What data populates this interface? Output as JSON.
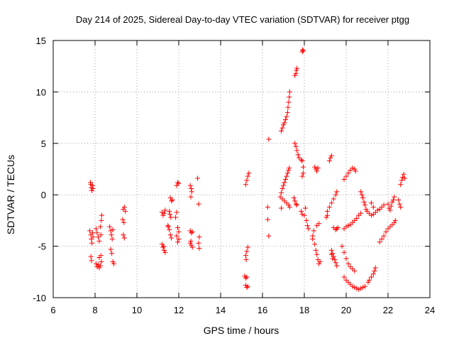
{
  "chart_data": {
    "type": "scatter",
    "title": "Day 214 of 2025, Sidereal Day-to-day VTEC variation (SDTVAR) for receiver ptgg",
    "xlabel": "GPS time / hours",
    "ylabel": "SDTVAR / TECUs",
    "xlim": [
      6,
      24
    ],
    "ylim": [
      -10,
      15
    ],
    "xticks": [
      6,
      8,
      10,
      12,
      14,
      16,
      18,
      20,
      22,
      24
    ],
    "yticks": [
      -10,
      -5,
      0,
      5,
      10,
      15
    ],
    "grid": true,
    "marker": "+",
    "marker_color": "#ff0000",
    "series": [
      {
        "name": "SDTVAR",
        "points": [
          [
            7.8,
            1.0
          ],
          [
            7.82,
            0.7
          ],
          [
            7.85,
            0.4
          ],
          [
            7.88,
            0.9
          ],
          [
            7.9,
            0.6
          ],
          [
            7.78,
            1.2
          ],
          [
            7.75,
            -3.5
          ],
          [
            7.8,
            -3.9
          ],
          [
            7.82,
            -4.3
          ],
          [
            7.85,
            -4.7
          ],
          [
            7.88,
            -3.7
          ],
          [
            7.9,
            -4.1
          ],
          [
            7.8,
            -6.0
          ],
          [
            7.83,
            -6.4
          ],
          [
            8.05,
            -3.3
          ],
          [
            8.1,
            -3.7
          ],
          [
            8.15,
            -4.1
          ],
          [
            8.2,
            -4.5
          ],
          [
            8.25,
            -3.1
          ],
          [
            8.3,
            -2.5
          ],
          [
            8.32,
            -2.0
          ],
          [
            8.28,
            -3.9
          ],
          [
            8.05,
            -6.7
          ],
          [
            8.1,
            -7.0
          ],
          [
            8.15,
            -6.8
          ],
          [
            8.2,
            -7.1
          ],
          [
            8.25,
            -6.9
          ],
          [
            8.3,
            -6.5
          ],
          [
            8.2,
            -6.1
          ],
          [
            8.28,
            -5.9
          ],
          [
            8.7,
            -3.1
          ],
          [
            8.75,
            -3.5
          ],
          [
            8.78,
            -3.9
          ],
          [
            8.82,
            -4.3
          ],
          [
            8.75,
            -5.3
          ],
          [
            8.8,
            -5.7
          ],
          [
            8.85,
            -6.5
          ],
          [
            8.9,
            -6.7
          ],
          [
            8.85,
            -3.4
          ],
          [
            9.35,
            -1.4
          ],
          [
            9.4,
            -1.2
          ],
          [
            9.45,
            -1.6
          ],
          [
            9.32,
            -2.4
          ],
          [
            9.38,
            -2.7
          ],
          [
            9.35,
            -3.9
          ],
          [
            9.4,
            -4.2
          ],
          [
            11.2,
            -1.7
          ],
          [
            11.25,
            -2.0
          ],
          [
            11.3,
            -1.8
          ],
          [
            11.35,
            -1.5
          ],
          [
            11.2,
            -4.8
          ],
          [
            11.25,
            -5.1
          ],
          [
            11.3,
            -5.4
          ],
          [
            11.35,
            -5.6
          ],
          [
            11.28,
            -5.0
          ],
          [
            11.6,
            -0.3
          ],
          [
            11.65,
            -0.6
          ],
          [
            11.7,
            -0.5
          ],
          [
            11.55,
            -1.6
          ],
          [
            11.58,
            -1.9
          ],
          [
            11.62,
            -2.2
          ],
          [
            11.5,
            -3.1
          ],
          [
            11.55,
            -3.4
          ],
          [
            11.6,
            -3.9
          ],
          [
            11.65,
            -4.2
          ],
          [
            11.48,
            -3.0
          ],
          [
            11.9,
            0.9
          ],
          [
            11.95,
            1.2
          ],
          [
            12.0,
            1.1
          ],
          [
            11.85,
            -2.2
          ],
          [
            11.9,
            -1.7
          ],
          [
            11.95,
            -3.2
          ],
          [
            12.0,
            -3.6
          ],
          [
            11.9,
            -4.0
          ],
          [
            11.95,
            -4.6
          ],
          [
            12.0,
            -4.3
          ],
          [
            12.55,
            0.9
          ],
          [
            12.6,
            0.6
          ],
          [
            12.62,
            0.3
          ],
          [
            12.58,
            -0.2
          ],
          [
            12.55,
            -3.5
          ],
          [
            12.6,
            -3.7
          ],
          [
            12.65,
            -3.6
          ],
          [
            12.55,
            -4.7
          ],
          [
            12.6,
            -4.9
          ],
          [
            12.65,
            -5.1
          ],
          [
            12.58,
            -4.5
          ],
          [
            12.9,
            1.6
          ],
          [
            12.95,
            -0.9
          ],
          [
            12.98,
            -4.1
          ],
          [
            12.95,
            -4.7
          ],
          [
            12.98,
            -5.2
          ],
          [
            15.2,
            1.0
          ],
          [
            15.25,
            1.4
          ],
          [
            15.3,
            1.8
          ],
          [
            15.35,
            2.1
          ],
          [
            15.2,
            -5.9
          ],
          [
            15.25,
            -5.5
          ],
          [
            15.3,
            -5.1
          ],
          [
            15.22,
            -6.3
          ],
          [
            15.15,
            -7.9
          ],
          [
            15.2,
            -8.1
          ],
          [
            15.25,
            -8.0
          ],
          [
            15.2,
            -8.8
          ],
          [
            15.25,
            -9.0
          ],
          [
            15.3,
            -8.9
          ],
          [
            16.3,
            5.4
          ],
          [
            16.25,
            -1.2
          ],
          [
            16.25,
            -2.4
          ],
          [
            16.3,
            -4.0
          ],
          [
            16.9,
            6.2
          ],
          [
            16.95,
            6.5
          ],
          [
            17.0,
            6.8
          ],
          [
            17.05,
            7.0
          ],
          [
            17.1,
            7.3
          ],
          [
            17.15,
            7.6
          ],
          [
            17.2,
            8.0
          ],
          [
            17.22,
            8.5
          ],
          [
            17.25,
            9.0
          ],
          [
            17.28,
            9.5
          ],
          [
            17.3,
            10.0
          ],
          [
            17.6,
            11.8
          ],
          [
            17.62,
            12.1
          ],
          [
            17.65,
            12.3
          ],
          [
            17.55,
            11.6
          ],
          [
            17.9,
            13.9
          ],
          [
            17.92,
            14.1
          ],
          [
            17.95,
            14.0
          ],
          [
            16.85,
            -0.2
          ],
          [
            16.9,
            0.2
          ],
          [
            16.95,
            0.6
          ],
          [
            17.0,
            0.9
          ],
          [
            17.05,
            1.2
          ],
          [
            17.1,
            1.5
          ],
          [
            17.15,
            1.8
          ],
          [
            17.2,
            2.1
          ],
          [
            17.25,
            2.4
          ],
          [
            17.28,
            2.6
          ],
          [
            16.95,
            -0.4
          ],
          [
            17.05,
            -0.6
          ],
          [
            17.15,
            -0.8
          ],
          [
            17.25,
            -1.0
          ],
          [
            17.3,
            -1.2
          ],
          [
            16.9,
            -1.3
          ],
          [
            17.55,
            5.0
          ],
          [
            17.6,
            4.7
          ],
          [
            17.65,
            4.3
          ],
          [
            17.7,
            3.9
          ],
          [
            17.75,
            3.6
          ],
          [
            17.85,
            3.4
          ],
          [
            17.9,
            3.3
          ],
          [
            17.95,
            2.7
          ],
          [
            17.95,
            2.1
          ],
          [
            17.9,
            1.8
          ],
          [
            17.5,
            -0.3
          ],
          [
            17.55,
            -0.6
          ],
          [
            17.6,
            -0.9
          ],
          [
            17.65,
            -1.0
          ],
          [
            17.85,
            -1.6
          ],
          [
            17.9,
            -1.9
          ],
          [
            18.0,
            -2.0
          ],
          [
            18.05,
            -1.3
          ],
          [
            18.1,
            -2.5
          ],
          [
            18.15,
            -3.0
          ],
          [
            18.2,
            -3.3
          ],
          [
            18.4,
            -4.0
          ],
          [
            18.5,
            -4.8
          ],
          [
            18.55,
            -5.4
          ],
          [
            18.6,
            -5.8
          ],
          [
            18.65,
            -6.3
          ],
          [
            18.7,
            -6.7
          ],
          [
            18.75,
            -6.5
          ],
          [
            18.4,
            -4.3
          ],
          [
            18.45,
            -3.5
          ],
          [
            18.6,
            -3.0
          ],
          [
            18.7,
            -2.8
          ],
          [
            18.5,
            2.7
          ],
          [
            18.55,
            2.5
          ],
          [
            18.6,
            2.3
          ],
          [
            18.65,
            2.6
          ],
          [
            19.2,
            3.3
          ],
          [
            19.25,
            3.6
          ],
          [
            19.3,
            3.8
          ],
          [
            19.1,
            -1.6
          ],
          [
            19.2,
            -1.2
          ],
          [
            19.3,
            -0.8
          ],
          [
            19.4,
            -0.4
          ],
          [
            19.5,
            0.0
          ],
          [
            19.55,
            0.3
          ],
          [
            19.05,
            -2.2
          ],
          [
            19.1,
            -2.0
          ],
          [
            19.4,
            -3.2
          ],
          [
            19.5,
            -3.4
          ],
          [
            19.55,
            -3.3
          ],
          [
            19.6,
            -3.2
          ],
          [
            19.3,
            -5.4
          ],
          [
            19.35,
            -5.7
          ],
          [
            19.4,
            -6.0
          ],
          [
            19.45,
            -6.3
          ],
          [
            19.5,
            -6.6
          ],
          [
            19.55,
            -6.9
          ],
          [
            19.3,
            -5.8
          ],
          [
            19.35,
            -6.2
          ],
          [
            19.9,
            1.5
          ],
          [
            20.0,
            1.8
          ],
          [
            20.1,
            2.1
          ],
          [
            20.2,
            2.4
          ],
          [
            20.3,
            2.6
          ],
          [
            20.4,
            2.5
          ],
          [
            20.45,
            2.3
          ],
          [
            19.9,
            -3.3
          ],
          [
            20.0,
            -3.1
          ],
          [
            20.1,
            -3.0
          ],
          [
            20.2,
            -2.9
          ],
          [
            20.3,
            -2.7
          ],
          [
            20.4,
            -2.5
          ],
          [
            20.5,
            -2.3
          ],
          [
            20.6,
            -2.0
          ],
          [
            20.7,
            -1.8
          ],
          [
            19.8,
            -5.0
          ],
          [
            19.9,
            -5.6
          ],
          [
            20.0,
            -6.2
          ],
          [
            20.1,
            -6.7
          ],
          [
            20.2,
            -7.0
          ],
          [
            20.3,
            -7.2
          ],
          [
            20.4,
            -7.4
          ],
          [
            19.9,
            -8.0
          ],
          [
            20.0,
            -8.3
          ],
          [
            20.1,
            -8.5
          ],
          [
            20.2,
            -8.7
          ],
          [
            20.3,
            -8.9
          ],
          [
            20.4,
            -9.0
          ],
          [
            20.5,
            -9.1
          ],
          [
            20.6,
            -9.2
          ],
          [
            20.7,
            -9.1
          ],
          [
            20.8,
            -9.0
          ],
          [
            20.9,
            -8.9
          ],
          [
            20.7,
            0.3
          ],
          [
            20.75,
            0.0
          ],
          [
            20.8,
            -0.3
          ],
          [
            20.85,
            -0.7
          ],
          [
            20.9,
            -1.0
          ],
          [
            20.95,
            -1.4
          ],
          [
            21.0,
            -1.6
          ],
          [
            21.1,
            -1.8
          ],
          [
            21.2,
            -2.0
          ],
          [
            21.3,
            -1.9
          ],
          [
            21.4,
            -1.7
          ],
          [
            21.5,
            -1.5
          ],
          [
            21.6,
            -1.4
          ],
          [
            21.7,
            -1.2
          ],
          [
            21.8,
            -1.0
          ],
          [
            21.2,
            -0.8
          ],
          [
            21.3,
            -1.2
          ],
          [
            21.1,
            -8.3
          ],
          [
            21.2,
            -8.0
          ],
          [
            21.3,
            -7.7
          ],
          [
            21.35,
            -7.4
          ],
          [
            21.4,
            -7.1
          ],
          [
            21.05,
            -8.5
          ],
          [
            21.6,
            -4.6
          ],
          [
            21.7,
            -4.3
          ],
          [
            21.8,
            -4.0
          ],
          [
            21.9,
            -3.6
          ],
          [
            22.0,
            -3.3
          ],
          [
            22.1,
            -3.1
          ],
          [
            22.2,
            -2.9
          ],
          [
            22.3,
            -2.7
          ],
          [
            22.35,
            -2.5
          ],
          [
            22.0,
            -0.9
          ],
          [
            22.05,
            -1.3
          ],
          [
            22.1,
            -1.5
          ],
          [
            22.15,
            -1.1
          ],
          [
            22.2,
            -0.7
          ],
          [
            22.25,
            -0.5
          ],
          [
            22.3,
            -0.2
          ],
          [
            22.5,
            -0.5
          ],
          [
            22.55,
            -0.9
          ],
          [
            22.6,
            -1.2
          ],
          [
            22.6,
            1.0
          ],
          [
            22.65,
            1.4
          ],
          [
            22.7,
            1.7
          ],
          [
            22.75,
            2.0
          ],
          [
            22.8,
            1.6
          ]
        ]
      }
    ]
  }
}
